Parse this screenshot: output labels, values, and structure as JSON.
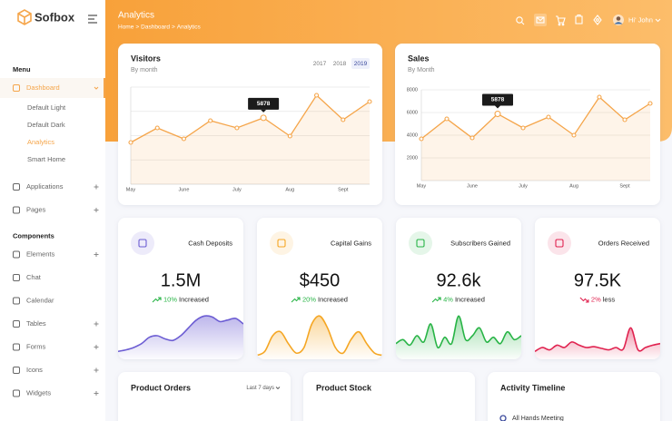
{
  "brand": "Sofbox",
  "header": {
    "title": "Analytics",
    "breadcrumb": [
      "Home",
      "Dashboard",
      "Analytics"
    ],
    "separator": ">",
    "user": "Hi' John"
  },
  "sidebar": {
    "sections": [
      {
        "label": "Menu",
        "items": [
          {
            "label": "Dashboard",
            "active": true,
            "children": [
              "Default Light",
              "Default Dark",
              "Analytics",
              "Smart Home"
            ],
            "active_child": 2
          },
          {
            "label": "Applications",
            "expandable": true
          },
          {
            "label": "Pages",
            "expandable": true
          }
        ]
      },
      {
        "label": "Components",
        "items": [
          {
            "label": "Elements",
            "expandable": true
          },
          {
            "label": "Chat"
          },
          {
            "label": "Calendar"
          },
          {
            "label": "Tables",
            "expandable": true
          },
          {
            "label": "Forms",
            "expandable": true
          },
          {
            "label": "Icons",
            "expandable": true
          },
          {
            "label": "Widgets",
            "expandable": true
          }
        ]
      }
    ]
  },
  "visitors_chart": {
    "type": "line",
    "title": "Visitors",
    "subtitle": "By month",
    "filters": [
      "2017",
      "2018",
      "2019"
    ],
    "active_filter": 2,
    "categories": [
      "May",
      null,
      "June",
      null,
      "July",
      null,
      "Aug",
      null,
      "Sept",
      null
    ],
    "values": [
      3697,
      4983,
      4019,
      5626,
      4983,
      5878,
      4260,
      7877,
      5707,
      7314
    ],
    "tooltip_index": 5,
    "ylim": [
      0,
      8600
    ],
    "color": "#f5a54a"
  },
  "sales_chart": {
    "type": "line",
    "title": "Sales",
    "subtitle": "By Month",
    "categories": [
      "May",
      null,
      "June",
      null,
      "July",
      null,
      "Aug",
      null,
      "Sept",
      null
    ],
    "values": [
      3680,
      5440,
      3760,
      5878,
      4640,
      5600,
      4000,
      7360,
      5360,
      6800
    ],
    "tooltip_index": 3,
    "ylim": [
      0,
      8000
    ],
    "yticks": [
      2000,
      4000,
      6000,
      8000
    ],
    "color": "#f5a54a"
  },
  "stats": [
    {
      "title": "Cash Deposits",
      "value": "1.5M",
      "change": "10%",
      "change_label": "Increased",
      "trend": "up",
      "color": "#6c5dd3",
      "spark_ylim": [
        0,
        60
      ],
      "spark": [
        10,
        12,
        15,
        20,
        28,
        30,
        26,
        24,
        30,
        40,
        50,
        55,
        54,
        48,
        50,
        52,
        45
      ]
    },
    {
      "title": "Capital Gains",
      "value": "$450",
      "change": "20%",
      "change_label": "Increased",
      "trend": "up",
      "color": "#f5a623",
      "spark_ylim": [
        0,
        60
      ],
      "spark": [
        5,
        10,
        30,
        35,
        20,
        8,
        15,
        45,
        55,
        40,
        15,
        8,
        25,
        35,
        20,
        8,
        5
      ]
    },
    {
      "title": "Subscribers Gained",
      "value": "92.6k",
      "change": "4%",
      "change_label": "Increased",
      "trend": "up",
      "color": "#28b446",
      "spark_ylim": [
        0,
        60
      ],
      "spark": [
        20,
        25,
        18,
        30,
        22,
        45,
        15,
        28,
        20,
        55,
        25,
        30,
        40,
        22,
        28,
        20,
        35,
        25,
        30
      ]
    },
    {
      "title": "Orders Received",
      "value": "97.5K",
      "change": "2%",
      "change_label": "less",
      "trend": "down",
      "color": "#e0224f",
      "spark_ylim": [
        0,
        60
      ],
      "spark": [
        10,
        15,
        12,
        18,
        15,
        22,
        18,
        15,
        16,
        14,
        12,
        15,
        13,
        40,
        12,
        15,
        18,
        20
      ]
    }
  ],
  "bottom_cards": [
    {
      "title": "Product Orders",
      "filter": "Last 7 days"
    },
    {
      "title": "Product Stock"
    },
    {
      "title": "Activity Timeline",
      "first_item": "All Hands Meeting"
    }
  ]
}
